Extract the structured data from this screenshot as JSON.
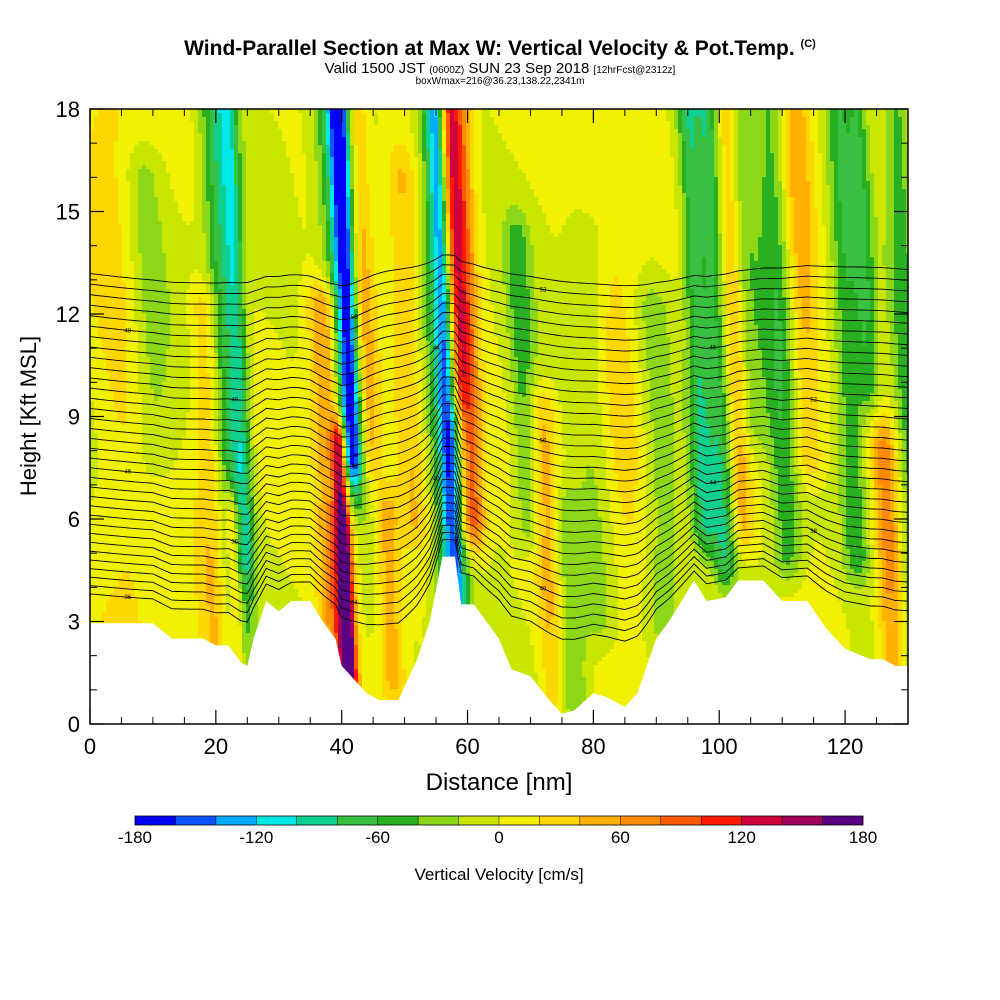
{
  "titles": {
    "main": "Wind-Parallel Section at Max W: Vertical Velocity & Pot.Temp.",
    "copyright": "(C)",
    "valid_prefix": "Valid 1500 JST",
    "valid_utc": "(0600Z)",
    "valid_date": "SUN 23 Sep 2018",
    "forecast": "[12hrFcst@2312z]",
    "boxinfo": "boxWmax=216@36.23,138.22,2341m"
  },
  "chart_data": {
    "type": "heatmap",
    "xlabel": "Distance [nm]",
    "ylabel": "Height [Kft MSL]",
    "xlim": [
      0,
      130
    ],
    "ylim": [
      0,
      18
    ],
    "xticks": [
      "0",
      "20",
      "40",
      "60",
      "80",
      "100",
      "120"
    ],
    "xtick_values": [
      0,
      20,
      40,
      60,
      80,
      100,
      120
    ],
    "yticks": [
      "0",
      "3",
      "6",
      "9",
      "12",
      "15",
      "18"
    ],
    "ytick_values": [
      0,
      3,
      6,
      9,
      12,
      15,
      18
    ],
    "colorbar": {
      "label": "Vertical Velocity [cm/s]",
      "range": [
        -180,
        180
      ],
      "tick_labels": [
        "-180",
        "-120",
        "-60",
        "0",
        "60",
        "120",
        "180"
      ],
      "tick_values": [
        -180,
        -120,
        -60,
        0,
        60,
        120,
        180
      ],
      "colors": [
        "#0000ff",
        "#0a55ff",
        "#00aaff",
        "#00e8e8",
        "#10d090",
        "#38c040",
        "#28b020",
        "#8cd818",
        "#c8e600",
        "#f0f000",
        "#ffd700",
        "#ffb000",
        "#ff8c00",
        "#ff5a00",
        "#ff1a00",
        "#d0003a",
        "#a0005c",
        "#5a0082"
      ]
    },
    "terrain": {
      "units": "x: nm, height: Kft MSL",
      "profile": [
        [
          0,
          2.95
        ],
        [
          10,
          2.95
        ],
        [
          13,
          2.5
        ],
        [
          18,
          2.5
        ],
        [
          20,
          2.3
        ],
        [
          22,
          2.3
        ],
        [
          24,
          1.8
        ],
        [
          25,
          1.7
        ],
        [
          26,
          2.5
        ],
        [
          28,
          3.6
        ],
        [
          30,
          3.3
        ],
        [
          32,
          3.6
        ],
        [
          35,
          3.6
        ],
        [
          37,
          3.0
        ],
        [
          39,
          2.5
        ],
        [
          40,
          1.7
        ],
        [
          42,
          1.3
        ],
        [
          44,
          0.9
        ],
        [
          46,
          0.7
        ],
        [
          49,
          0.7
        ],
        [
          52,
          1.9
        ],
        [
          54,
          3.0
        ],
        [
          56,
          4.9
        ],
        [
          58,
          4.9
        ],
        [
          59,
          3.5
        ],
        [
          61,
          3.5
        ],
        [
          63,
          3.0
        ],
        [
          65,
          2.5
        ],
        [
          67,
          1.6
        ],
        [
          70,
          1.4
        ],
        [
          73,
          0.7
        ],
        [
          75,
          0.3
        ],
        [
          77,
          0.4
        ],
        [
          80,
          0.9
        ],
        [
          82,
          0.8
        ],
        [
          85,
          0.5
        ],
        [
          87,
          0.9
        ],
        [
          90,
          2.5
        ],
        [
          92,
          3.0
        ],
        [
          94,
          3.6
        ],
        [
          96,
          4.2
        ],
        [
          98,
          3.6
        ],
        [
          101,
          3.7
        ],
        [
          103,
          4.2
        ],
        [
          107,
          4.2
        ],
        [
          110,
          3.6
        ],
        [
          114,
          3.6
        ],
        [
          117,
          2.8
        ],
        [
          120,
          2.2
        ],
        [
          124,
          1.9
        ],
        [
          126,
          1.9
        ],
        [
          128,
          1.7
        ],
        [
          130,
          1.7
        ]
      ]
    },
    "velocity_features": [
      {
        "x": 22,
        "w": 2.5,
        "y0": 0,
        "y1": 18,
        "value": -75
      },
      {
        "x": 24,
        "w": 1.4,
        "y0": 5,
        "y1": 18,
        "value": -60
      },
      {
        "x": 19,
        "w": 2.5,
        "y0": 2,
        "y1": 12,
        "value": 45
      },
      {
        "x": 22,
        "w": 1.2,
        "y0": 2,
        "y1": 6,
        "value": 80
      },
      {
        "x": 41.5,
        "w": 1.6,
        "y0": 8,
        "y1": 18,
        "value": -150
      },
      {
        "x": 40.5,
        "w": 2.8,
        "y0": 7,
        "y1": 18,
        "value": -70
      },
      {
        "x": 39.5,
        "w": 1.2,
        "y0": 1,
        "y1": 8,
        "value": 170
      },
      {
        "x": 38,
        "w": 2.6,
        "y0": 1,
        "y1": 12,
        "value": 80
      },
      {
        "x": 44,
        "w": 2,
        "y0": 8,
        "y1": 18,
        "value": 55
      },
      {
        "x": 46.5,
        "w": 2,
        "y0": 1.5,
        "y1": 6,
        "value": 55
      },
      {
        "x": 57,
        "w": 1.6,
        "y0": 4,
        "y1": 18,
        "value": -110
      },
      {
        "x": 56.5,
        "w": 3,
        "y0": 3,
        "y1": 18,
        "value": -60
      },
      {
        "x": 60,
        "w": 2.2,
        "y0": 6,
        "y1": 18,
        "value": 110
      },
      {
        "x": 58.5,
        "w": 1.5,
        "y0": 10,
        "y1": 18,
        "value": 80
      },
      {
        "x": 51,
        "w": 2.5,
        "y0": 6,
        "y1": 16,
        "value": 40
      },
      {
        "x": 69,
        "w": 2,
        "y0": 6,
        "y1": 14,
        "value": -45
      },
      {
        "x": 72,
        "w": 2,
        "y0": 1,
        "y1": 9,
        "value": 45
      },
      {
        "x": 75,
        "w": 2.5,
        "y0": 1,
        "y1": 6,
        "value": -45
      },
      {
        "x": 97,
        "w": 1.8,
        "y0": 6,
        "y1": 18,
        "value": -75
      },
      {
        "x": 100,
        "w": 1.8,
        "y0": 5,
        "y1": 18,
        "value": -70
      },
      {
        "x": 103,
        "w": 1.8,
        "y0": 6,
        "y1": 18,
        "value": 55
      },
      {
        "x": 105,
        "w": 2.6,
        "y0": 9,
        "y1": 18,
        "value": -40
      },
      {
        "x": 110,
        "w": 2.5,
        "y0": 5,
        "y1": 18,
        "value": -55
      },
      {
        "x": 114,
        "w": 2.5,
        "y0": 8,
        "y1": 18,
        "value": 50
      },
      {
        "x": 121,
        "w": 2.2,
        "y0": 5,
        "y1": 18,
        "value": -55
      },
      {
        "x": 124,
        "w": 1.6,
        "y0": 10,
        "y1": 18,
        "value": -50
      },
      {
        "x": 5,
        "w": 5,
        "y0": 2,
        "y1": 18,
        "value": 25
      },
      {
        "x": 10,
        "w": 3,
        "y0": 8,
        "y1": 16,
        "value": -30
      },
      {
        "x": 84,
        "w": 5,
        "y0": 1,
        "y1": 18,
        "value": 25
      },
      {
        "x": 80,
        "w": 3,
        "y0": 3,
        "y1": 14,
        "value": -30
      },
      {
        "x": 90,
        "w": 3,
        "y0": 3,
        "y1": 12,
        "value": -35
      },
      {
        "x": 130,
        "w": 2,
        "y0": 2,
        "y1": 18,
        "value": -50
      },
      {
        "x": 126,
        "w": 2,
        "y0": 2,
        "y1": 8,
        "value": 60
      }
    ],
    "isentropes": {
      "theta_start": 300,
      "theta_step": 1,
      "count": 34,
      "surface_level": 7.5,
      "level_step": 0.32
    },
    "contour_labels": [
      "36",
      "34",
      "40",
      "38",
      "36",
      "40",
      "44",
      "46",
      "48",
      "50",
      "52",
      "40",
      "44",
      "46",
      "48",
      "50",
      "52",
      "30",
      "36",
      "38",
      "42",
      "44",
      "46",
      "48",
      "50"
    ]
  }
}
